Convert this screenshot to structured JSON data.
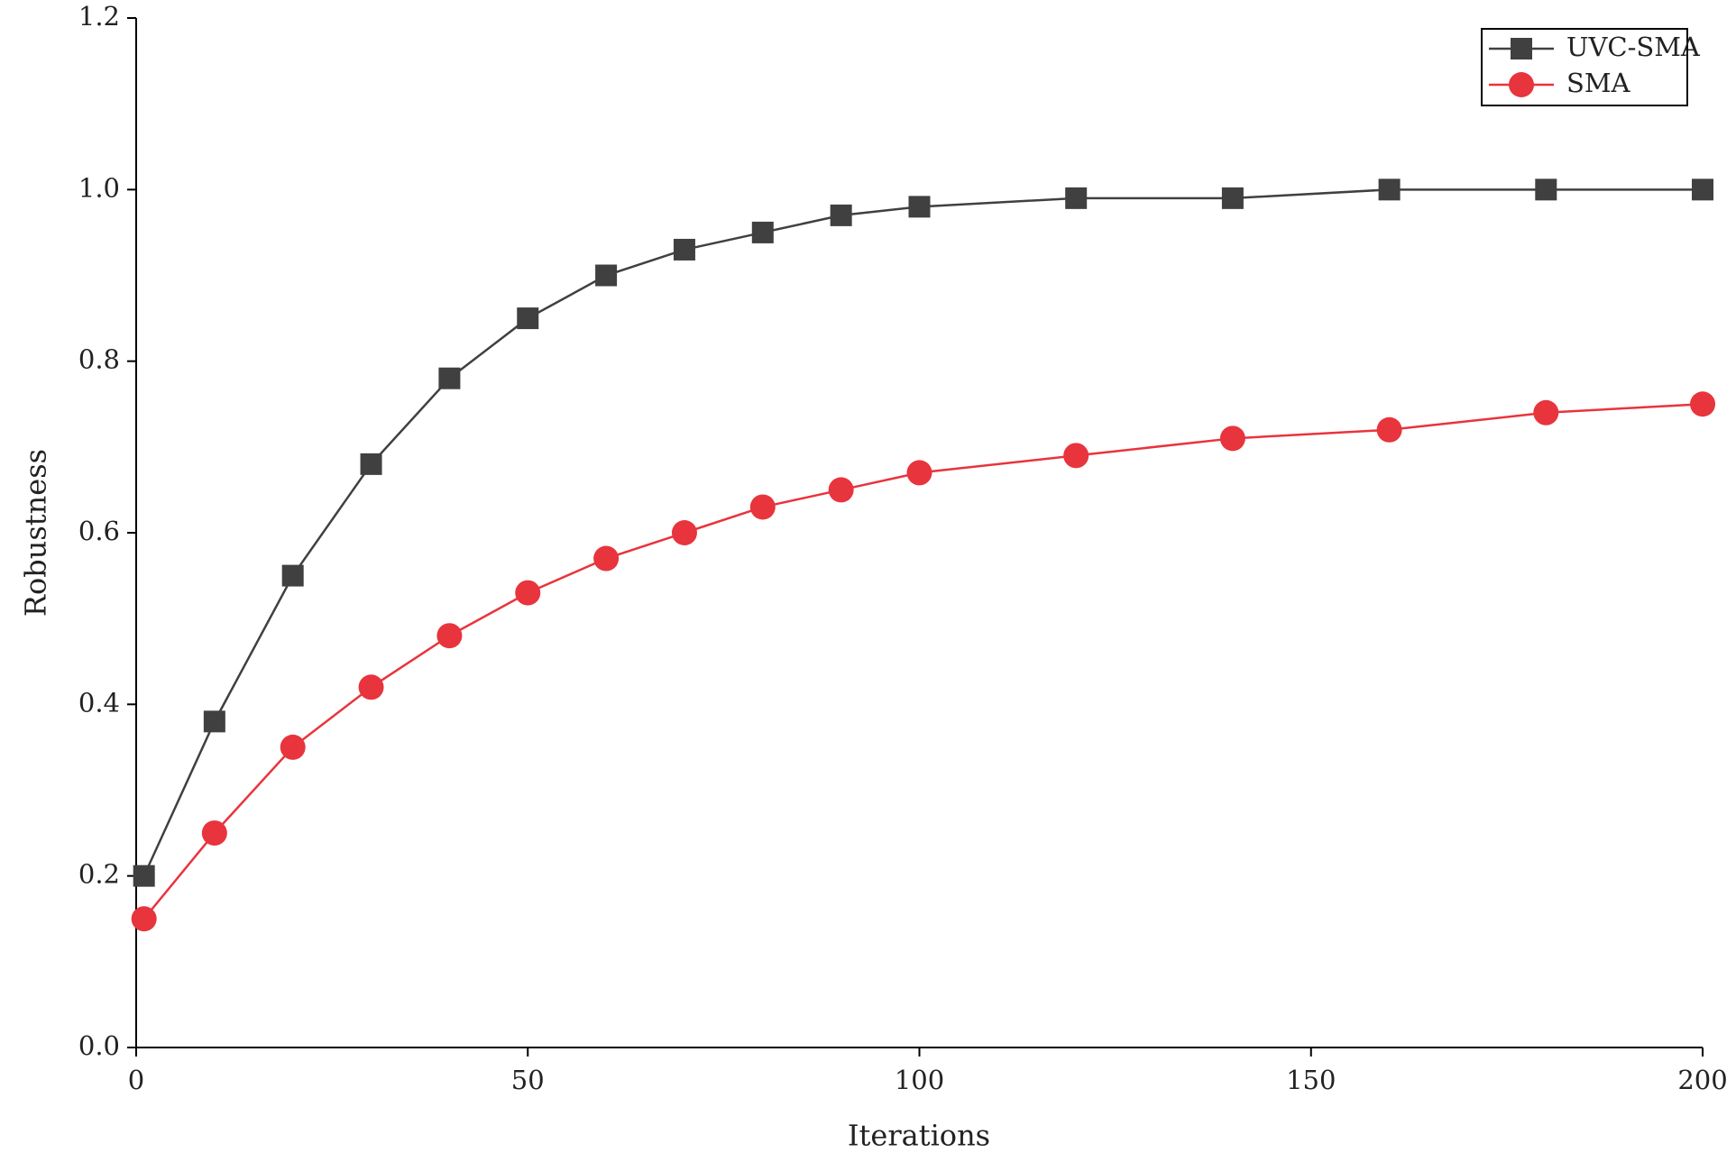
{
  "chart_data": {
    "type": "line",
    "x_label": "Iterations",
    "y_label": "Robustness",
    "x": [
      1,
      10,
      20,
      30,
      40,
      50,
      60,
      70,
      80,
      90,
      100,
      120,
      140,
      160,
      180,
      200
    ],
    "series": [
      {
        "name": "UVC-SMA",
        "color": "#404040",
        "marker": "square",
        "values": [
          0.2,
          0.38,
          0.55,
          0.68,
          0.78,
          0.85,
          0.9,
          0.93,
          0.95,
          0.97,
          0.98,
          0.99,
          0.99,
          1.0,
          1.0,
          1.0
        ]
      },
      {
        "name": "SMA",
        "color": "#e8343c",
        "marker": "circle",
        "values": [
          0.15,
          0.25,
          0.35,
          0.42,
          0.48,
          0.53,
          0.57,
          0.6,
          0.63,
          0.65,
          0.67,
          0.69,
          0.71,
          0.72,
          0.74,
          0.75
        ]
      }
    ],
    "xlim": [
      0,
      200
    ],
    "xticks": [
      0,
      50,
      100,
      150,
      200
    ],
    "ylim": [
      0,
      1.2
    ],
    "yticks": [
      {
        "value": 0,
        "label": "0.0"
      },
      0.2,
      0.4,
      0.6,
      0.8,
      {
        "value": 1,
        "label": "1.0"
      },
      1.2
    ],
    "legend": "upper-right",
    "grid": false
  }
}
